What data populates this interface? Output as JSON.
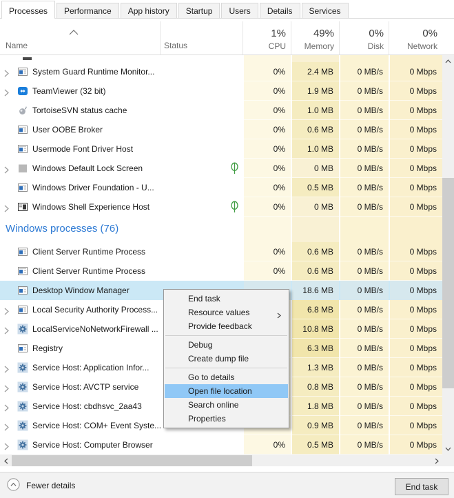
{
  "tabs": [
    {
      "label": "Processes",
      "selected": true
    },
    {
      "label": "Performance"
    },
    {
      "label": "App history"
    },
    {
      "label": "Startup"
    },
    {
      "label": "Users"
    },
    {
      "label": "Details"
    },
    {
      "label": "Services"
    }
  ],
  "header": {
    "name_label": "Name",
    "status_label": "Status",
    "sort_icon": "chevron-up-icon",
    "columns": [
      {
        "key": "cpu",
        "value": "1%",
        "label": "CPU"
      },
      {
        "key": "memory",
        "value": "49%",
        "label": "Memory"
      },
      {
        "key": "disk",
        "value": "0%",
        "label": "Disk"
      },
      {
        "key": "network",
        "value": "0%",
        "label": "Network"
      }
    ]
  },
  "process_groups": [
    {
      "rows": [
        {
          "name": "System Guard Runtime Monitor...",
          "icon": "window-icon",
          "expand": true,
          "cpu": "0%",
          "memory": "2.4 MB",
          "disk": "0 MB/s",
          "network": "0 Mbps"
        },
        {
          "name": "TeamViewer (32 bit)",
          "icon": "teamviewer-icon",
          "expand": true,
          "cpu": "0%",
          "memory": "1.9 MB",
          "disk": "0 MB/s",
          "network": "0 Mbps"
        },
        {
          "name": "TortoiseSVN status cache",
          "icon": "tortoisesvn-icon",
          "cpu": "0%",
          "memory": "1.0 MB",
          "disk": "0 MB/s",
          "network": "0 Mbps"
        },
        {
          "name": "User OOBE Broker",
          "icon": "window-icon",
          "cpu": "0%",
          "memory": "0.6 MB",
          "disk": "0 MB/s",
          "network": "0 Mbps"
        },
        {
          "name": "Usermode Font Driver Host",
          "icon": "window-icon",
          "cpu": "0%",
          "memory": "1.0 MB",
          "disk": "0 MB/s",
          "network": "0 Mbps"
        },
        {
          "name": "Windows Default Lock Screen",
          "icon": "gray-tile-icon",
          "expand": true,
          "suspended": true,
          "cpu": "0%",
          "memory": "0 MB",
          "disk": "0 MB/s",
          "network": "0 Mbps"
        },
        {
          "name": "Windows Driver Foundation - U...",
          "icon": "window-icon",
          "cpu": "0%",
          "memory": "0.5 MB",
          "disk": "0 MB/s",
          "network": "0 Mbps"
        },
        {
          "name": "Windows Shell Experience Host",
          "icon": "dark-window-icon",
          "expand": true,
          "suspended": true,
          "cpu": "0%",
          "memory": "0 MB",
          "disk": "0 MB/s",
          "network": "0 Mbps"
        }
      ]
    },
    {
      "header": "Windows processes (76)",
      "rows": [
        {
          "name": "Client Server Runtime Process",
          "icon": "window-icon",
          "cpu": "0%",
          "memory": "0.6 MB",
          "disk": "0 MB/s",
          "network": "0 Mbps"
        },
        {
          "name": "Client Server Runtime Process",
          "icon": "window-icon",
          "cpu": "0%",
          "memory": "0.6 MB",
          "disk": "0 MB/s",
          "network": "0 Mbps"
        },
        {
          "name": "Desktop Window Manager",
          "icon": "window-icon",
          "selected": true,
          "cpu": "",
          "memory": "18.6 MB",
          "disk": "0 MB/s",
          "network": "0 Mbps"
        },
        {
          "name": "Local Security Authority Process...",
          "icon": "window-icon",
          "expand": true,
          "cpu": "",
          "memory": "6.8 MB",
          "disk": "0 MB/s",
          "network": "0 Mbps"
        },
        {
          "name": "LocalServiceNoNetworkFirewall ...",
          "icon": "gear-icon",
          "expand": true,
          "cpu": "",
          "memory": "10.8 MB",
          "disk": "0 MB/s",
          "network": "0 Mbps"
        },
        {
          "name": "Registry",
          "icon": "window-icon",
          "cpu": "",
          "memory": "6.3 MB",
          "disk": "0 MB/s",
          "network": "0 Mbps"
        },
        {
          "name": "Service Host: Application Infor...",
          "icon": "gear-icon",
          "expand": true,
          "cpu": "",
          "memory": "1.3 MB",
          "disk": "0 MB/s",
          "network": "0 Mbps"
        },
        {
          "name": "Service Host: AVCTP service",
          "icon": "gear-icon",
          "expand": true,
          "cpu": "",
          "memory": "0.8 MB",
          "disk": "0 MB/s",
          "network": "0 Mbps"
        },
        {
          "name": "Service Host: cbdhsvc_2aa43",
          "icon": "gear-icon",
          "expand": true,
          "cpu": "",
          "memory": "1.8 MB",
          "disk": "0 MB/s",
          "network": "0 Mbps"
        },
        {
          "name": "Service Host: COM+ Event Syste...",
          "icon": "gear-icon",
          "expand": true,
          "cpu": "",
          "memory": "0.9 MB",
          "disk": "0 MB/s",
          "network": "0 Mbps"
        },
        {
          "name": "Service Host: Computer Browser",
          "icon": "gear-icon",
          "expand": true,
          "cpu": "0%",
          "memory": "0.5 MB",
          "disk": "0 MB/s",
          "network": "0 Mbps"
        }
      ]
    }
  ],
  "context_menu": {
    "items": [
      {
        "label": "End task"
      },
      {
        "label": "Resource values",
        "submenu": true
      },
      {
        "label": "Provide feedback"
      },
      {
        "type": "separator"
      },
      {
        "label": "Debug"
      },
      {
        "label": "Create dump file"
      },
      {
        "type": "separator"
      },
      {
        "label": "Go to details"
      },
      {
        "label": "Open file location",
        "highlighted": true
      },
      {
        "label": "Search online"
      },
      {
        "label": "Properties"
      }
    ]
  },
  "footer": {
    "fewer_details_label": "Fewer details",
    "end_task_label": "End task"
  },
  "colors": {
    "selection_blue": "#cbe8f6",
    "menu_highlight": "#90c8f6",
    "group_header_blue": "#2f7bd4",
    "suspend_leaf_green": "#3f9c42",
    "heat_cpu_light": "#fdf8e3",
    "heat_memory": "#f5ecc0"
  }
}
